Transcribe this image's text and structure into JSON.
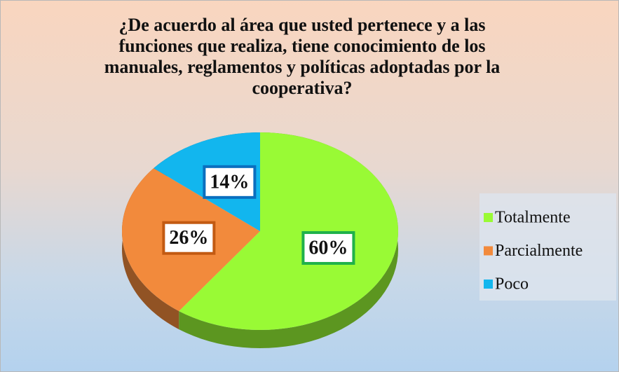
{
  "chart_data": {
    "type": "pie",
    "title": "¿De acuerdo al área que usted pertenece y a las funciones que realiza, tiene conocimiento de los manuales, reglamentos y políticas adoptadas por la cooperativa?",
    "categories": [
      "Totalmente",
      "Parcialmente",
      "Poco"
    ],
    "values": [
      60,
      26,
      14
    ],
    "value_labels": [
      "60%",
      "26%",
      "14%"
    ],
    "colors": [
      "#99fa35",
      "#f28a3c",
      "#12b6ee"
    ],
    "label_border_colors": [
      "#1fb14a",
      "#c25a12",
      "#0a6fbf"
    ],
    "legend": "right"
  }
}
